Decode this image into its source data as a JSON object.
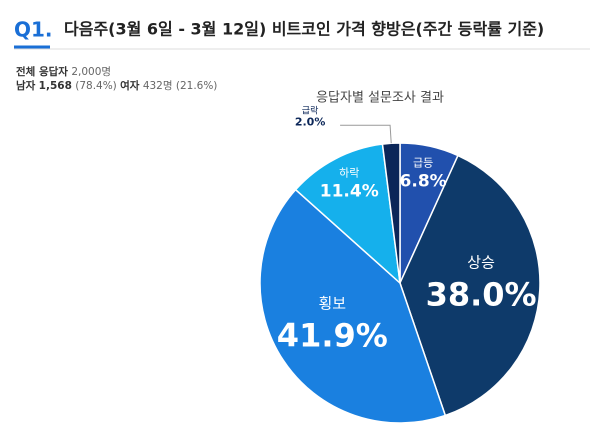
{
  "header": {
    "number": "Q1.",
    "title": "다음주(3월 6일 - 3월 12일)  비트코인 가격 향방은(주간 등락률 기준)"
  },
  "respondents": {
    "total_label": "전체 응답자",
    "total": "2,000명",
    "male_label": "남자",
    "male": "1,568",
    "male_pct": "(78.4%)",
    "female_label": "여자",
    "female": "432명",
    "female_pct": "(21.6%)"
  },
  "chart_data": {
    "type": "pie",
    "title": "응답자별 설문조사 결과",
    "categories": [
      "급등",
      "상승",
      "횡보",
      "하락",
      "급락"
    ],
    "values": [
      6.8,
      38.0,
      41.9,
      11.4,
      2.0
    ],
    "value_labels": [
      "6.8%",
      "38.0%",
      "41.9%",
      "11.4%",
      "2.0%"
    ],
    "colors": [
      "#2150ad",
      "#0e3a6a",
      "#1a80e0",
      "#15b0ec",
      "#0b2658"
    ]
  }
}
